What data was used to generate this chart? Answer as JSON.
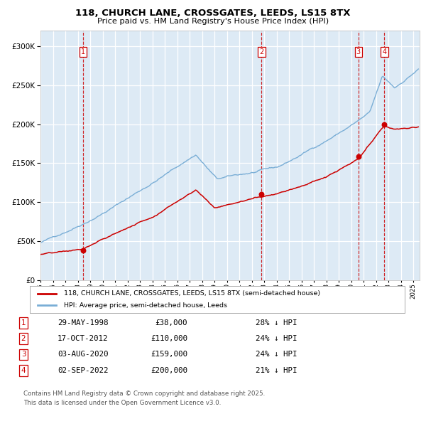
{
  "title_line1": "118, CHURCH LANE, CROSSGATES, LEEDS, LS15 8TX",
  "title_line2": "Price paid vs. HM Land Registry's House Price Index (HPI)",
  "hpi_color": "#7aaed6",
  "price_color": "#cc0000",
  "bg_color": "#ddeaf5",
  "grid_color": "#ffffff",
  "sale_dates_num": [
    1998.41,
    2012.79,
    2020.58,
    2022.67
  ],
  "sale_prices": [
    38000,
    110000,
    159000,
    200000
  ],
  "sale_labels": [
    "1",
    "2",
    "3",
    "4"
  ],
  "table_rows": [
    [
      "1",
      "29-MAY-1998",
      "£38,000",
      "28% ↓ HPI"
    ],
    [
      "2",
      "17-OCT-2012",
      "£110,000",
      "24% ↓ HPI"
    ],
    [
      "3",
      "03-AUG-2020",
      "£159,000",
      "24% ↓ HPI"
    ],
    [
      "4",
      "02-SEP-2022",
      "£200,000",
      "21% ↓ HPI"
    ]
  ],
  "legend_line1": "118, CHURCH LANE, CROSSGATES, LEEDS, LS15 8TX (semi-detached house)",
  "legend_line2": "HPI: Average price, semi-detached house, Leeds",
  "footnote": "Contains HM Land Registry data © Crown copyright and database right 2025.\nThis data is licensed under the Open Government Licence v3.0.",
  "ylim": [
    0,
    320000
  ],
  "yticks": [
    0,
    50000,
    100000,
    150000,
    200000,
    250000,
    300000
  ],
  "xmin": 1995.0,
  "xmax": 2025.5
}
